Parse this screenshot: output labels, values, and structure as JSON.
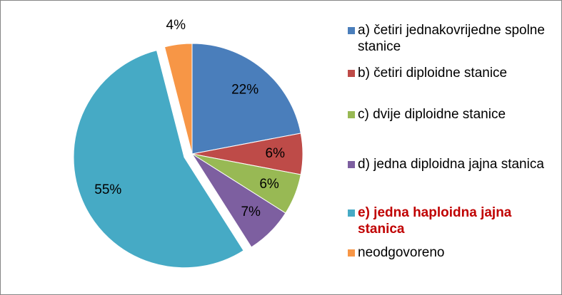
{
  "chart_data": {
    "type": "pie",
    "categories": [
      "a) četiri jednakovrijedne spolne stanice",
      "b) četiri diploidne stanice",
      "c) dvije diploidne stanice",
      "d) jedna diploidna jajna stanica",
      "e) jedna haploidna jajna stanica",
      "neodgovoreno"
    ],
    "values": [
      22,
      6,
      6,
      7,
      55,
      4
    ],
    "value_labels": [
      "22%",
      "6%",
      "6%",
      "7%",
      "55%",
      "4%"
    ],
    "colors": [
      "#4a7ebb",
      "#be4b48",
      "#98b954",
      "#7d5fa0",
      "#46aac5",
      "#f79646"
    ],
    "exploded": [
      false,
      false,
      false,
      false,
      true,
      false
    ],
    "highlight_index": 4,
    "highlight_color": "#c00000",
    "legend": "right"
  }
}
